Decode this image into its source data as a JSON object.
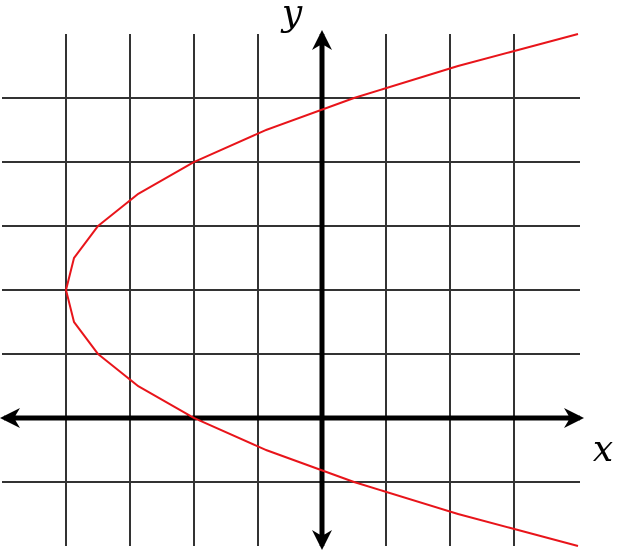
{
  "chart_data": {
    "type": "line",
    "x_label": "x",
    "y_label": "y",
    "xlim": [
      -5,
      4
    ],
    "ylim": [
      -2,
      6
    ],
    "xticks": [
      -4,
      -3,
      -2,
      -1,
      1,
      2,
      3
    ],
    "yticks": [
      -1,
      1,
      2,
      3,
      4,
      5
    ],
    "grid": true,
    "series": [
      {
        "color": "#e8141a",
        "x": [
          4,
          2.125,
          0.5,
          -0.875,
          -2,
          -2.875,
          -3.5,
          -3.875,
          -4,
          -3.875,
          -3.5,
          -2.875,
          -2,
          -0.875,
          0.5,
          2.125,
          4
        ],
        "values": [
          -2,
          -1.5,
          -1,
          -0.5,
          0,
          0.5,
          1,
          1.5,
          2,
          2.5,
          3,
          3.5,
          4,
          4.5,
          5,
          5.5,
          6
        ]
      }
    ]
  }
}
